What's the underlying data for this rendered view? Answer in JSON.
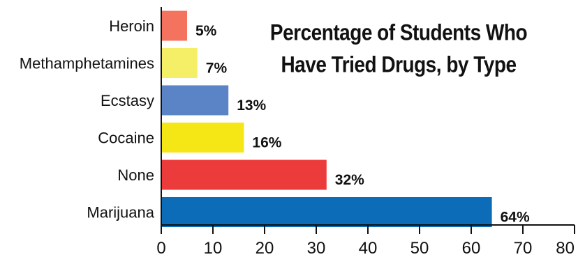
{
  "chart_data": {
    "type": "bar",
    "orientation": "horizontal",
    "title_lines": [
      "Percentage of Students Who",
      "Have Tried Drugs, by Type"
    ],
    "categories": [
      "Heroin",
      "Methamphetamines",
      "Ecstasy",
      "Cocaine",
      "None",
      "Marijuana"
    ],
    "values": [
      5,
      7,
      13,
      16,
      32,
      64
    ],
    "value_labels": [
      "5%",
      "7%",
      "13%",
      "16%",
      "32%",
      "64%"
    ],
    "colors": [
      "#f4735f",
      "#f5ef68",
      "#5b84c7",
      "#f5e615",
      "#ec3b3b",
      "#0d6cb8"
    ],
    "x_ticks": [
      "0",
      "10",
      "20",
      "30",
      "40",
      "50",
      "60",
      "70",
      "80"
    ],
    "xlim": [
      0,
      80
    ],
    "xlabel": "",
    "ylabel": "",
    "grid": false,
    "legend": "none"
  }
}
